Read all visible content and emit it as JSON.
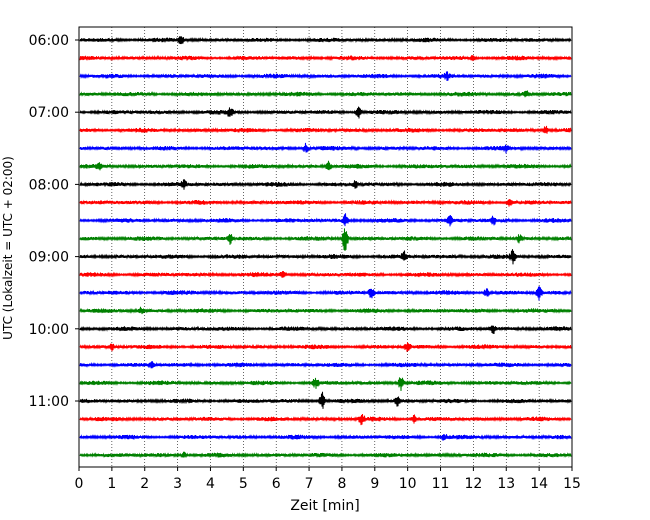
{
  "chart_data": {
    "type": "line",
    "title": "",
    "xlabel": "Zeit  [min]",
    "ylabel": "UTC (Lokalzeit = UTC + 02:00)",
    "xlim": [
      0,
      15
    ],
    "x_ticks": [
      0,
      1,
      2,
      3,
      4,
      5,
      6,
      7,
      8,
      9,
      10,
      11,
      12,
      13,
      14,
      15
    ],
    "x_tick_labels": [
      "0",
      "1",
      "2",
      "3",
      "4",
      "5",
      "6",
      "7",
      "8",
      "9",
      "10",
      "11",
      "12",
      "13",
      "14",
      "15"
    ],
    "y_tick_labels": [
      "06:00",
      "07:00",
      "08:00",
      "09:00",
      "10:00",
      "11:00"
    ],
    "y_tick_traces": [
      0,
      4,
      8,
      12,
      16,
      20
    ],
    "grid": "x-dotted",
    "colors": [
      "#000000",
      "#ff0000",
      "#0000ff",
      "#008000"
    ],
    "series": [
      {
        "start": "06:00",
        "color": "#000000",
        "events": [
          [
            3.1,
            1.5
          ]
        ]
      },
      {
        "start": "06:15",
        "color": "#ff0000",
        "events": [
          [
            12.0,
            1.0
          ]
        ]
      },
      {
        "start": "06:30",
        "color": "#0000ff",
        "events": [
          [
            11.2,
            1.0
          ]
        ]
      },
      {
        "start": "06:45",
        "color": "#008000",
        "events": [
          [
            13.6,
            1.0
          ]
        ]
      },
      {
        "start": "07:00",
        "color": "#000000",
        "events": [
          [
            4.6,
            1.5
          ],
          [
            8.5,
            2.2
          ]
        ]
      },
      {
        "start": "07:15",
        "color": "#ff0000",
        "events": [
          [
            14.2,
            1.5
          ]
        ]
      },
      {
        "start": "07:30",
        "color": "#0000ff",
        "events": [
          [
            6.9,
            1.6
          ],
          [
            13.0,
            1.2
          ]
        ]
      },
      {
        "start": "07:45",
        "color": "#008000",
        "events": [
          [
            7.6,
            1.5
          ],
          [
            0.6,
            1.0
          ]
        ]
      },
      {
        "start": "08:00",
        "color": "#000000",
        "events": [
          [
            3.2,
            1.2
          ],
          [
            8.4,
            1.0
          ]
        ]
      },
      {
        "start": "08:15",
        "color": "#ff0000",
        "events": [
          [
            13.1,
            1.2
          ]
        ]
      },
      {
        "start": "08:30",
        "color": "#0000ff",
        "events": [
          [
            8.1,
            2.0
          ],
          [
            11.3,
            2.0
          ],
          [
            12.6,
            1.2
          ]
        ]
      },
      {
        "start": "08:45",
        "color": "#008000",
        "events": [
          [
            4.6,
            1.8
          ],
          [
            8.1,
            4.8
          ],
          [
            13.4,
            1.2
          ]
        ]
      },
      {
        "start": "09:00",
        "color": "#000000",
        "events": [
          [
            9.9,
            1.6
          ],
          [
            13.2,
            2.0
          ]
        ]
      },
      {
        "start": "09:15",
        "color": "#ff0000",
        "events": [
          [
            6.2,
            1.2
          ]
        ]
      },
      {
        "start": "09:30",
        "color": "#0000ff",
        "events": [
          [
            8.9,
            2.0
          ],
          [
            12.4,
            1.6
          ],
          [
            14.0,
            2.4
          ]
        ]
      },
      {
        "start": "09:45",
        "color": "#008000",
        "events": [
          [
            1.9,
            1.0
          ]
        ]
      },
      {
        "start": "10:00",
        "color": "#000000",
        "events": [
          [
            12.6,
            1.5
          ]
        ]
      },
      {
        "start": "10:15",
        "color": "#ff0000",
        "events": [
          [
            10.0,
            1.8
          ],
          [
            1.0,
            1.0
          ]
        ]
      },
      {
        "start": "10:30",
        "color": "#0000ff",
        "events": [
          [
            2.2,
            1.0
          ]
        ]
      },
      {
        "start": "10:45",
        "color": "#008000",
        "events": [
          [
            7.2,
            1.6
          ],
          [
            9.8,
            2.4
          ]
        ]
      },
      {
        "start": "11:00",
        "color": "#000000",
        "events": [
          [
            7.4,
            3.2
          ],
          [
            9.7,
            1.6
          ]
        ]
      },
      {
        "start": "11:15",
        "color": "#ff0000",
        "events": [
          [
            8.6,
            1.6
          ],
          [
            10.2,
            1.2
          ]
        ]
      },
      {
        "start": "11:30",
        "color": "#0000ff",
        "events": [
          [
            11.1,
            1.2
          ]
        ]
      },
      {
        "start": "11:45",
        "color": "#008000",
        "events": [
          [
            3.2,
            1.0
          ]
        ]
      }
    ]
  }
}
